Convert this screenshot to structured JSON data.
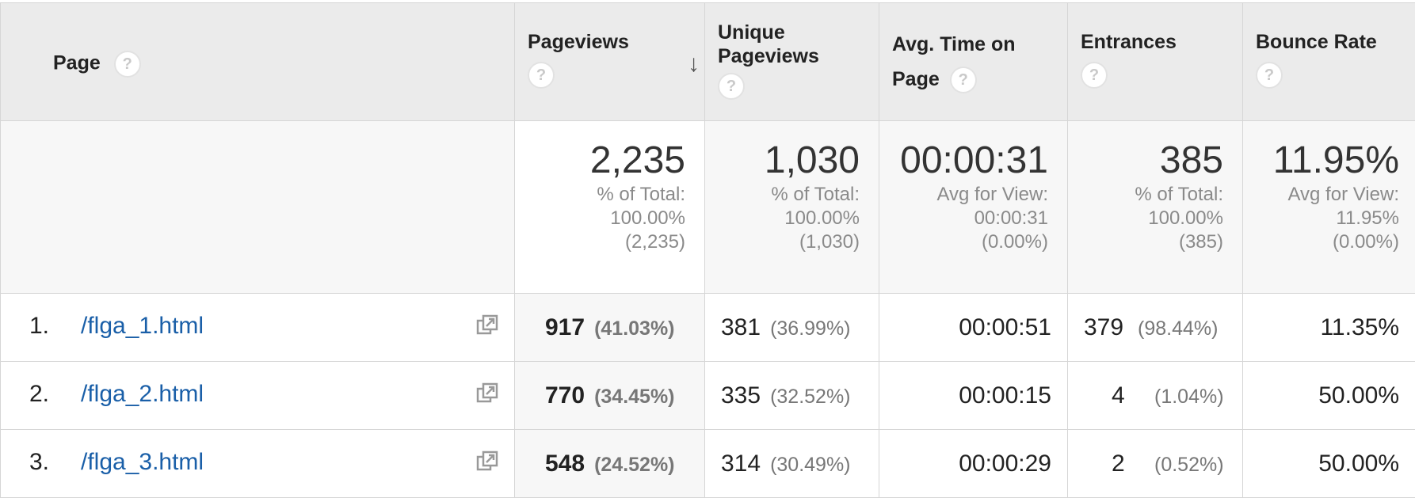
{
  "columns": {
    "page": "Page",
    "pageviews": "Pageviews",
    "unique_pageviews": "Unique Pageviews",
    "avg_time": "Avg. Time on Page",
    "entrances": "Entrances",
    "bounce_rate": "Bounce Rate",
    "help_glyph": "?",
    "sort_glyph": "↓"
  },
  "totals": {
    "pageviews": {
      "value": "2,235",
      "line1": "% of Total:",
      "line2": "100.00%",
      "line3": "(2,235)"
    },
    "unique_pageviews": {
      "value": "1,030",
      "line1": "% of Total:",
      "line2": "100.00%",
      "line3": "(1,030)"
    },
    "avg_time": {
      "value": "00:00:31",
      "line1": "Avg for View:",
      "line2": "00:00:31",
      "line3": "(0.00%)"
    },
    "entrances": {
      "value": "385",
      "line1": "% of Total:",
      "line2": "100.00%",
      "line3": "(385)"
    },
    "bounce_rate": {
      "value": "11.95%",
      "line1": "Avg for View:",
      "line2": "11.95%",
      "line3": "(0.00%)"
    }
  },
  "rows": [
    {
      "num": "1.",
      "page": "/flga_1.html",
      "pageviews": "917",
      "pageviews_pct": "(41.03%)",
      "unique": "381",
      "unique_pct": "(36.99%)",
      "avg_time": "00:00:51",
      "entrances": "379",
      "entrances_pct": "(98.44%)",
      "bounce": "11.35%"
    },
    {
      "num": "2.",
      "page": "/flga_2.html",
      "pageviews": "770",
      "pageviews_pct": "(34.45%)",
      "unique": "335",
      "unique_pct": "(32.52%)",
      "avg_time": "00:00:15",
      "entrances": "4",
      "entrances_pct": "(1.04%)",
      "bounce": "50.00%"
    },
    {
      "num": "3.",
      "page": "/flga_3.html",
      "pageviews": "548",
      "pageviews_pct": "(24.52%)",
      "unique": "314",
      "unique_pct": "(30.49%)",
      "avg_time": "00:00:29",
      "entrances": "2",
      "entrances_pct": "(0.52%)",
      "bounce": "50.00%"
    }
  ],
  "icons": {
    "help": "help-circle-icon",
    "sort": "arrow-down-icon",
    "external": "open-in-new-window-icon"
  },
  "colors": {
    "link": "#1a5fa8",
    "header_bg": "#ebebeb",
    "totals_bg": "#f7f7f7"
  }
}
